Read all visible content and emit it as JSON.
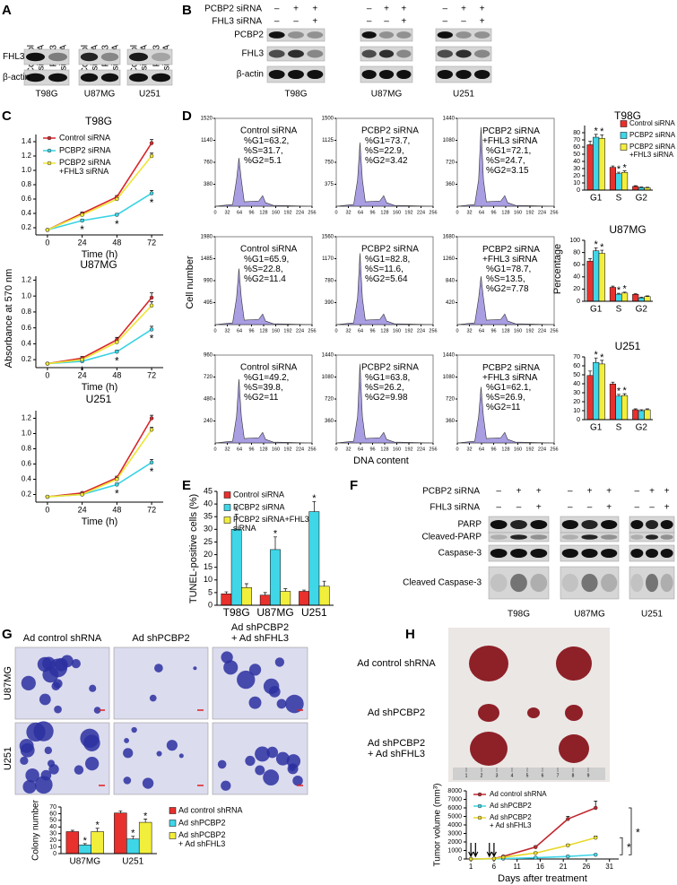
{
  "panel_labels": [
    "A",
    "B",
    "C",
    "D",
    "E",
    "F",
    "G",
    "H"
  ],
  "panel_a": {
    "columns": [
      "Control\nsiRNA",
      "FHL3\nsiRNA"
    ],
    "rows": [
      "FHL3",
      "β-actin"
    ],
    "cell_lines": [
      "T98G",
      "U87MG",
      "U251"
    ]
  },
  "panel_b": {
    "conditions": [
      {
        "label": "PCBP2 siRNA",
        "signs": [
          "–",
          "+",
          "+"
        ]
      },
      {
        "label": "FHL3 siRNA",
        "signs": [
          "–",
          "–",
          "+"
        ]
      }
    ],
    "rows": [
      "PCBP2",
      "FHL3",
      "β-actin"
    ],
    "cell_lines": [
      "T98G",
      "U87MG",
      "U251"
    ]
  },
  "panel_d_flow": {
    "x_label": "DNA content",
    "y_label": "Cell number",
    "xticks": [
      0,
      32,
      64,
      96,
      128,
      160,
      192,
      224,
      256
    ],
    "panels": [
      {
        "yticks": [
          1520,
          1140,
          760,
          380
        ],
        "label": "Control siRNA",
        "stats": "%G1=63.2,\n%S=31.7,\n%G2=5.1"
      },
      {
        "yticks": [
          1500,
          1125,
          750,
          375
        ],
        "label": "PCBP2 siRNA",
        "stats": "%G1=73.7,\n%S=22.9,\n%G2=3.42"
      },
      {
        "yticks": [
          1440,
          1080,
          720,
          360
        ],
        "label": "PCBP2 siRNA\n+FHL3 siRNA",
        "stats": "%G1=72.1,\n%S=24.7,\n%G2=3.15"
      },
      {
        "yticks": [
          1980,
          1485,
          990,
          495
        ],
        "label": "Control siRNA",
        "stats": "%G1=65.9,\n%S=22.8,\n%G2=11.4"
      },
      {
        "yticks": [
          1560,
          1170,
          780,
          390
        ],
        "label": "PCBP2 siRNA",
        "stats": "%G1=82.8,\n%S=11.6,\n%G2=5.64"
      },
      {
        "yticks": [
          1680,
          1260,
          840,
          420
        ],
        "label": "PCBP2 siRNA\n+FHL3 siRNA",
        "stats": "%G1=78.7,\n%S=13.5,\n%G2=7.78"
      },
      {
        "yticks": [
          960,
          720,
          480,
          240
        ],
        "label": "Control siRNA",
        "stats": "%G1=49.2,\n%S=39.8,\n%G2=11"
      },
      {
        "yticks": [
          1440,
          1080,
          720,
          360
        ],
        "label": "PCBP2 siRNA",
        "stats": "%G1=63.8,\n%S=26.2,\n%G2=9.98"
      },
      {
        "yticks": [
          1440,
          1080,
          720,
          360
        ],
        "label": "PCBP2 siRNA\n+FHL3 siRNA",
        "stats": "%G1=62.1,\n%S=26.9,\n%G2=11"
      }
    ]
  },
  "panel_f": {
    "conditions": [
      {
        "label": "PCBP2 siRNA",
        "signs": [
          "–",
          "+",
          "+"
        ]
      },
      {
        "label": "FHL3 siRNA",
        "signs": [
          "–",
          "–",
          "+"
        ]
      }
    ],
    "rows": [
      "PARP",
      "Cleaved-PARP",
      "Caspase-3",
      "Cleaved Caspase-3"
    ],
    "cell_lines": [
      "T98G",
      "U87MG",
      "U251"
    ]
  },
  "panel_g_images": {
    "columns": [
      "Ad control shRNA",
      "Ad shPCBP2",
      "Ad shPCBP2\n+ Ad shFHL3"
    ],
    "rows": [
      "U87MG",
      "U251"
    ]
  },
  "panel_h_photo": {
    "rows": [
      "Ad control shRNA",
      "Ad shPCBP2",
      "Ad shPCBP2\n+ Ad shFHL3"
    ],
    "ruler": [
      "1",
      "2",
      "3",
      "4",
      "5",
      "6",
      "7",
      "8",
      "9"
    ]
  },
  "chart_data": [
    {
      "type": "line",
      "title": "T98G",
      "x": [
        0,
        24,
        48,
        72
      ],
      "xlim": [
        -8,
        80
      ],
      "xticks": [
        0,
        24,
        48,
        72
      ],
      "xlabel": "Time (h)",
      "ylim": [
        0.1,
        1.5
      ],
      "yticks": [
        0.2,
        0.4,
        0.6,
        0.8,
        {
          "value": 1,
          "label": "1.0"
        },
        1.2,
        1.4
      ],
      "legend": "upper left",
      "series": [
        {
          "name": "Control siRNA",
          "color": "#d8262a",
          "values": [
            0.17,
            0.4,
            0.63,
            1.38
          ],
          "errors": [
            0.01,
            0.02,
            0.02,
            0.05
          ]
        },
        {
          "name": "PCBP2 siRNA",
          "color": "#39d3e4",
          "values": [
            0.17,
            0.3,
            0.38,
            0.68
          ],
          "errors": [
            0.01,
            0.02,
            0.02,
            0.04
          ],
          "stars": [
            null,
            "*",
            "*",
            "*"
          ]
        },
        {
          "name": "PCBP2 siRNA\n+FHL3 siRNA",
          "color": "#eee534",
          "values": [
            0.17,
            0.38,
            0.6,
            1.2
          ],
          "errors": [
            0.01,
            0.02,
            0.02,
            0.04
          ]
        }
      ]
    },
    {
      "type": "line",
      "title": "U87MG",
      "x": [
        0,
        24,
        48,
        72
      ],
      "xlim": [
        -8,
        80
      ],
      "xticks": [
        0,
        24,
        48,
        72
      ],
      "xlabel": "Time (h)",
      "ylim": [
        0.1,
        1.25
      ],
      "yticks": [
        0.2,
        0.4,
        0.6,
        0.8,
        {
          "value": 1,
          "label": "1.0"
        },
        1.2
      ],
      "ylabel": "Absorbance at 570 nm",
      "series": [
        {
          "color": "#d8262a",
          "values": [
            0.15,
            0.22,
            0.45,
            0.98
          ],
          "errors": [
            0.01,
            0.02,
            0.03,
            0.06
          ]
        },
        {
          "color": "#39d3e4",
          "values": [
            0.15,
            0.18,
            0.3,
            0.58
          ],
          "errors": [
            0.01,
            0.01,
            0.02,
            0.04
          ],
          "stars": [
            null,
            "*",
            "*",
            "*"
          ]
        },
        {
          "color": "#eee534",
          "values": [
            0.15,
            0.2,
            0.42,
            0.88
          ],
          "errors": [
            0.01,
            0.01,
            0.02,
            0.05
          ]
        }
      ]
    },
    {
      "type": "line",
      "title": "U251",
      "x": [
        0,
        24,
        48,
        72
      ],
      "xlim": [
        -8,
        80
      ],
      "xticks": [
        0,
        24,
        48,
        72
      ],
      "xlabel": "Time (h)",
      "ylim": [
        0.1,
        1.3
      ],
      "yticks": [
        0.2,
        0.4,
        0.6,
        0.8,
        {
          "value": 1,
          "label": "1.0"
        },
        1.2
      ],
      "series": [
        {
          "color": "#d8262a",
          "values": [
            0.17,
            0.22,
            0.42,
            1.2
          ],
          "errors": [
            0.01,
            0.01,
            0.02,
            0.04
          ]
        },
        {
          "color": "#39d3e4",
          "values": [
            0.17,
            0.2,
            0.33,
            0.62
          ],
          "errors": [
            0.01,
            0.01,
            0.02,
            0.04
          ],
          "stars": [
            null,
            null,
            "*",
            "*"
          ]
        },
        {
          "color": "#eee534",
          "values": [
            0.17,
            0.2,
            0.4,
            1.05
          ],
          "errors": [
            0.01,
            0.01,
            0.02,
            0.03
          ]
        }
      ]
    },
    {
      "type": "bar",
      "title": "T98G",
      "categories": [
        "G1",
        "S",
        "G2"
      ],
      "ylim": [
        0,
        90
      ],
      "yticks": [
        0,
        10,
        20,
        30,
        40,
        50,
        60,
        70,
        80
      ],
      "legend": "upper right",
      "series": [
        {
          "name": "Control siRNA",
          "color": "#e8302c",
          "values": [
            63.2,
            31.7,
            5.1
          ],
          "errors": [
            5,
            2,
            1
          ]
        },
        {
          "name": "PCBP2 siRNA",
          "color": "#3fd6e8",
          "values": [
            73.7,
            22.9,
            3.42
          ],
          "errors": [
            4,
            2,
            0.8
          ],
          "stars": [
            "*",
            "*",
            null
          ]
        },
        {
          "name": "PCBP2 siRNA\n+FHL3 siRNA",
          "color": "#f2ee3c",
          "values": [
            72.1,
            24.7,
            3.15
          ],
          "errors": [
            5,
            2,
            0.8
          ],
          "stars": [
            "*",
            "*",
            null
          ]
        }
      ]
    },
    {
      "type": "bar",
      "title": "U87MG",
      "categories": [
        "G1",
        "S",
        "G2"
      ],
      "ylim": [
        0,
        100
      ],
      "yticks": [
        0,
        20,
        40,
        60,
        80,
        100
      ],
      "ylabel": "Percentage",
      "series": [
        {
          "color": "#e8302c",
          "values": [
            65.9,
            22.8,
            11.4
          ],
          "errors": [
            4,
            2,
            1
          ]
        },
        {
          "color": "#3fd6e8",
          "values": [
            82.8,
            11.6,
            5.64
          ],
          "errors": [
            5,
            1.5,
            1
          ],
          "stars": [
            "*",
            "*",
            null
          ]
        },
        {
          "color": "#f2ee3c",
          "values": [
            78.7,
            13.5,
            7.78
          ],
          "errors": [
            5,
            1.5,
            1
          ],
          "stars": [
            "*",
            "*",
            null
          ]
        }
      ]
    },
    {
      "type": "bar",
      "title": "U251",
      "categories": [
        "G1",
        "S",
        "G2"
      ],
      "ylim": [
        0,
        70
      ],
      "yticks": [
        0,
        10,
        20,
        30,
        40,
        50,
        60,
        70
      ],
      "series": [
        {
          "color": "#e8302c",
          "values": [
            49.2,
            39.8,
            11
          ],
          "errors": [
            5,
            2,
            1
          ]
        },
        {
          "color": "#3fd6e8",
          "values": [
            63.8,
            26.2,
            9.98
          ],
          "errors": [
            5,
            2,
            1
          ],
          "stars": [
            "*",
            "*",
            null
          ]
        },
        {
          "color": "#f2ee3c",
          "values": [
            62.1,
            26.9,
            11
          ],
          "errors": [
            4,
            2,
            1
          ],
          "stars": [
            "*",
            "*",
            null
          ]
        }
      ]
    },
    {
      "type": "bar",
      "categories": [
        "T98G",
        "U87MG",
        "U251"
      ],
      "ylim": [
        0,
        45
      ],
      "yticks": [
        0,
        5,
        10,
        15,
        20,
        25,
        30,
        35,
        40,
        45
      ],
      "ylabel": "TUNEL-positive cells (%)",
      "legend": "upper left",
      "series": [
        {
          "name": "Control siRNA",
          "color": "#e8302c",
          "values": [
            4.5,
            4,
            5.5
          ],
          "errors": [
            0.8,
            1,
            0.5
          ]
        },
        {
          "name": "PCBP2 siRNA",
          "color": "#3fd6e8",
          "values": [
            30,
            22,
            37
          ],
          "errors": [
            6,
            5,
            4
          ],
          "stars": [
            "*",
            "*",
            "*"
          ]
        },
        {
          "name": "PCBP2 siRNA+FHL3\nsiRNA",
          "color": "#f2ee3c",
          "values": [
            7,
            5.5,
            7.5
          ],
          "errors": [
            1.5,
            1,
            2
          ]
        }
      ]
    },
    {
      "type": "bar",
      "categories": [
        "U87MG",
        "U251"
      ],
      "ylim": [
        0,
        70
      ],
      "yticks": [
        0,
        10,
        20,
        30,
        40,
        50,
        60,
        70
      ],
      "ylabel": "Colony number",
      "legend": "outside right",
      "series": [
        {
          "name": "Ad control shRNA",
          "color": "#e8302c",
          "values": [
            33,
            61
          ],
          "errors": [
            2,
            3
          ]
        },
        {
          "name": "Ad shPCBP2",
          "color": "#3fd6e8",
          "values": [
            13,
            22
          ],
          "errors": [
            2,
            4
          ],
          "stars": [
            "*",
            "*"
          ]
        },
        {
          "name": "Ad shPCBP2\n+ Ad shFHL3",
          "color": "#f2ee3c",
          "values": [
            33,
            47
          ],
          "errors": [
            5,
            5
          ],
          "stars": [
            "*",
            "*"
          ]
        }
      ]
    },
    {
      "type": "line",
      "x": [
        1,
        6,
        8,
        15,
        22,
        28
      ],
      "xlim": [
        0,
        33
      ],
      "xticks": [
        1,
        6,
        11,
        16,
        21,
        26,
        31
      ],
      "xlabel": "Days after treatment",
      "ylim": [
        0,
        8000
      ],
      "yticks": [
        0,
        1000,
        2000,
        3000,
        4000,
        5000,
        6000,
        7000,
        8000
      ],
      "ylabel": "Tumor volume (mm³)",
      "legend": "upper left",
      "treatment_days": [
        1,
        2,
        5,
        6
      ],
      "bracket_labels": [
        "*",
        "*"
      ],
      "series": [
        {
          "name": "Ad control shRNA",
          "color": "#c0272d",
          "values": [
            0,
            50,
            300,
            1400,
            4700,
            6000
          ],
          "errors": [
            0,
            20,
            60,
            150,
            300,
            800
          ]
        },
        {
          "name": "Ad shPCBP2",
          "color": "#3fd6e8",
          "values": [
            0,
            20,
            50,
            150,
            300,
            500
          ],
          "errors": [
            0,
            10,
            20,
            40,
            60,
            80
          ]
        },
        {
          "name": "Ad shPCBP2\n+ Ad shFHL3",
          "color": "#e8d82a",
          "values": [
            0,
            40,
            200,
            700,
            1600,
            2500
          ],
          "errors": [
            0,
            15,
            40,
            100,
            150,
            200
          ]
        }
      ]
    }
  ]
}
